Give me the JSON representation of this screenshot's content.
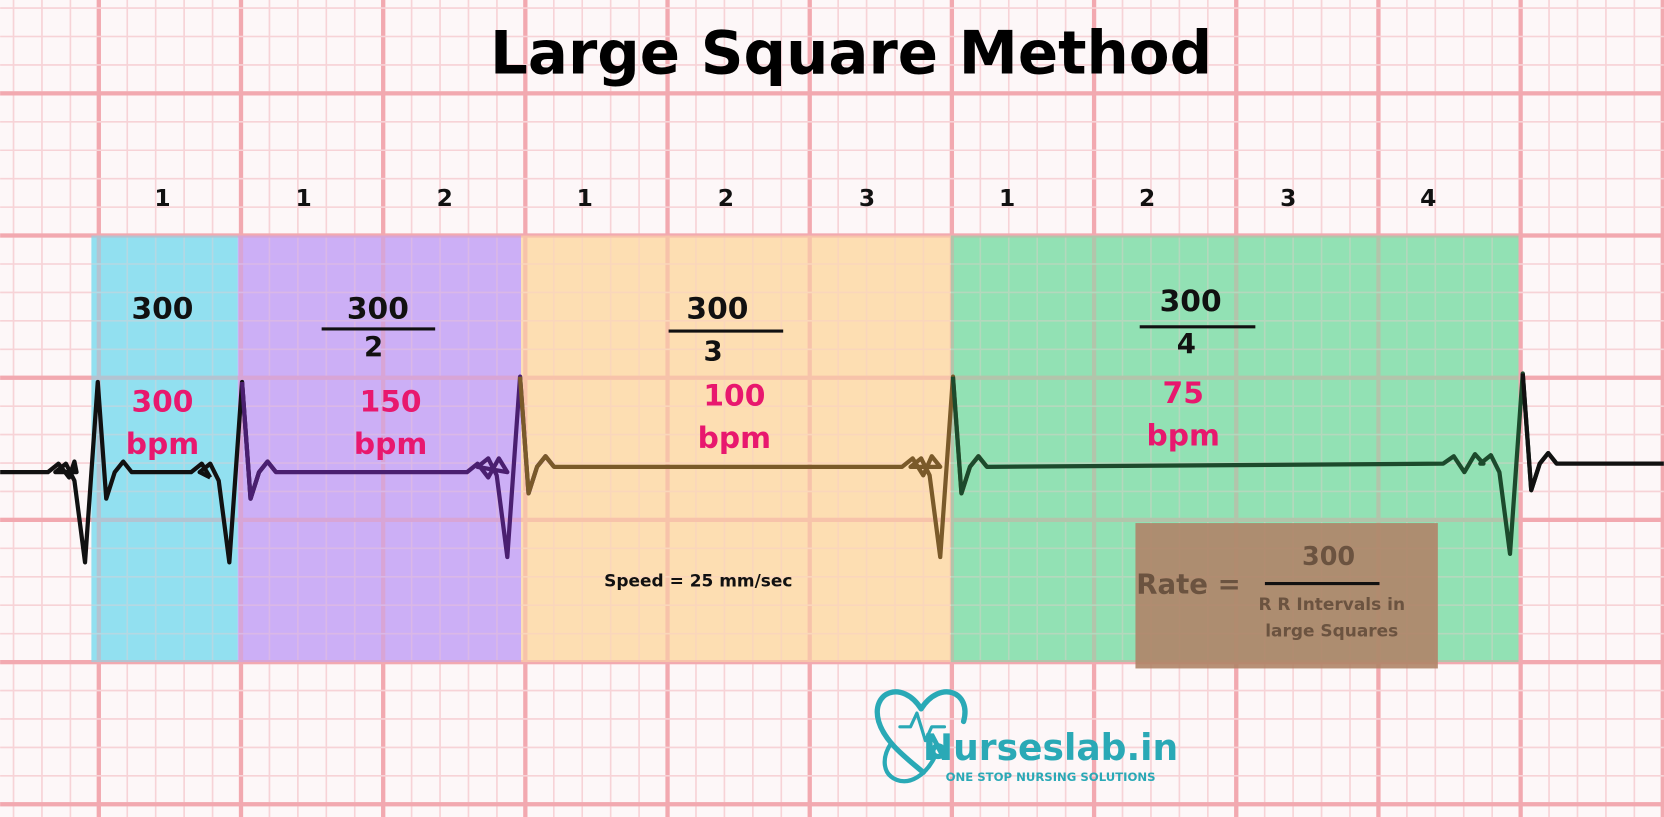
{
  "title": "Large Square Method",
  "square_counts": [
    [
      "1"
    ],
    [
      "1",
      "2"
    ],
    [
      "1",
      "2",
      "3"
    ],
    [
      "1",
      "2",
      "3",
      "4"
    ]
  ],
  "sections": [
    {
      "numerator": "300",
      "result": "300",
      "unit": "bpm"
    },
    {
      "numerator": "300",
      "denominator": "2",
      "result": "150",
      "unit": "bpm"
    },
    {
      "numerator": "300",
      "denominator": "3",
      "result": "100",
      "unit": "bpm"
    },
    {
      "numerator": "300",
      "denominator": "4",
      "result": "75",
      "unit": "bpm"
    }
  ],
  "speed_note": "Speed = 25 mm/sec",
  "formula": {
    "label": "Rate =",
    "numerator": "300",
    "denominator": [
      "R R Intervals in",
      "large Squares"
    ]
  },
  "logo": {
    "name": "Nurseslab.in",
    "tagline": "ONE STOP NURSING SOLUTIONS"
  }
}
